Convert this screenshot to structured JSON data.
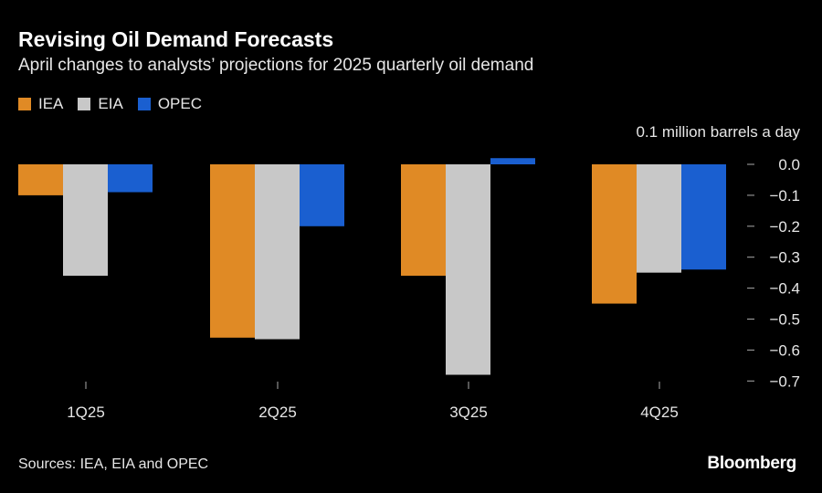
{
  "title": "Revising Oil Demand Forecasts",
  "subtitle": "April changes to analysts’ projections for 2025 quarterly oil demand",
  "unit_label": "0.1 million barrels a day",
  "source": "Sources: IEA, EIA and OPEC",
  "brand": "Bloomberg",
  "chart_data": {
    "type": "bar",
    "categories": [
      "1Q25",
      "2Q25",
      "3Q25",
      "4Q25"
    ],
    "series": [
      {
        "name": "IEA",
        "color": "#e08a25",
        "values": [
          -0.1,
          -0.56,
          -0.36,
          -0.45
        ]
      },
      {
        "name": "EIA",
        "color": "#c8c8c8",
        "values": [
          -0.36,
          -0.565,
          -0.68,
          -0.35
        ]
      },
      {
        "name": "OPEC",
        "color": "#1a5fd0",
        "values": [
          -0.09,
          -0.2,
          0.02,
          -0.34
        ]
      }
    ],
    "yticks": [
      "0.0",
      "-0.1",
      "-0.2",
      "-0.3",
      "-0.4",
      "-0.5",
      "-0.6",
      "-0.7"
    ],
    "ylim": [
      -0.7,
      0.0
    ],
    "grid": false,
    "legend_position": "top-left",
    "y_axis_side": "right"
  }
}
